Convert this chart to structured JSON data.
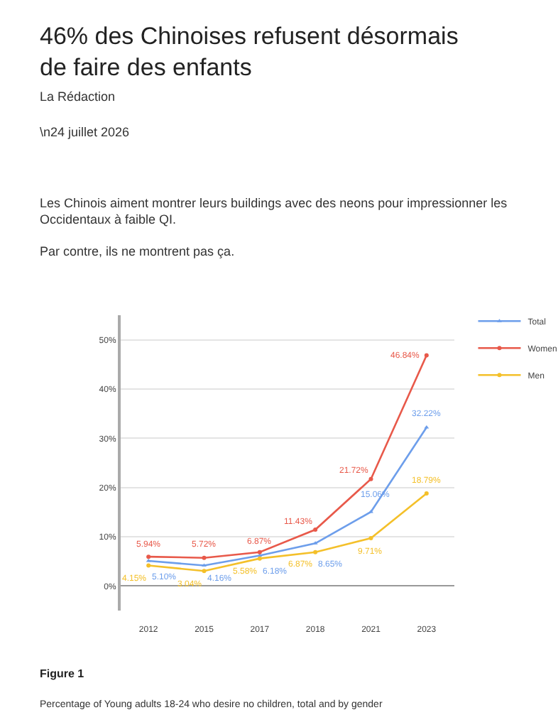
{
  "chart_data": {
    "type": "line",
    "title": "46% des Chinoises refusent désormais de faire des enfants",
    "subtitle": "La Rédaction",
    "annotations": [
      "\\n24 juillet 2026",
      "Les Chinois aiment montrer leurs buildings avec des neons pour impressionner les Occidentaux à faible QI.",
      "Par contre, ils ne montrent pas ça.",
      "Figure 1",
      "Percentage of Young adults 18-24 who desire no children, total and by gender"
    ],
    "categories": [
      "2012",
      "2015",
      "2017",
      "2018",
      "2021",
      "2023"
    ],
    "series": [
      {
        "name": "Total",
        "color": "#6d9eeb",
        "marker": "triangle",
        "values": [
          5.1,
          4.16,
          6.18,
          8.65,
          15.06,
          32.22
        ],
        "value_labels": [
          "5.10%",
          "4.16%",
          "6.18%",
          "8.65%",
          "15.06%",
          "32.22%"
        ]
      },
      {
        "name": "Women",
        "color": "#e8594a",
        "marker": "circle",
        "values": [
          5.94,
          5.72,
          6.87,
          11.43,
          21.72,
          46.84
        ],
        "value_labels": [
          "5.94%",
          "5.72%",
          "6.87%",
          "11.43%",
          "21.72%",
          "46.84%"
        ]
      },
      {
        "name": "Men",
        "color": "#f4c02a",
        "marker": "circle",
        "values": [
          4.15,
          3.04,
          5.58,
          6.87,
          9.71,
          18.79
        ],
        "value_labels": [
          "4.15%",
          "3.04%",
          "5.58%",
          "6.87%",
          "9.71%",
          "18.79%"
        ]
      }
    ],
    "ylim": [
      -5,
      55
    ],
    "yticks": [
      {
        "value": 0,
        "label": "0%"
      },
      {
        "value": 10,
        "label": "10%"
      },
      {
        "value": 20,
        "label": "20%"
      },
      {
        "value": 30,
        "label": "30%"
      },
      {
        "value": 40,
        "label": "40%"
      },
      {
        "value": 50,
        "label": "50%"
      }
    ],
    "grid": "y",
    "legend": "top right"
  }
}
